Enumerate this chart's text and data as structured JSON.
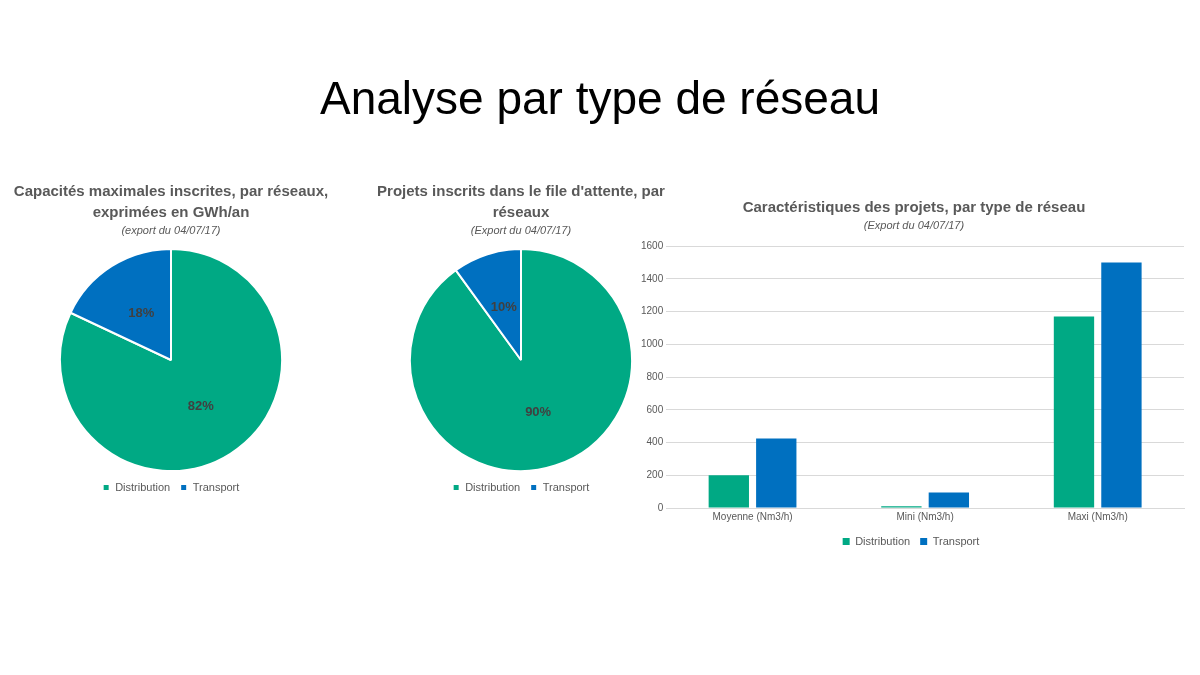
{
  "chart_data": [
    {
      "type": "pie",
      "title": "Capacités maximales inscrites, par réseaux, exprimées en GWh/an",
      "subtitle": "(export du 04/07/17)",
      "annotations": [
        "Analyse par type de réseau"
      ],
      "categories": [
        "Distribution",
        "Transport"
      ],
      "values": [
        82,
        18
      ],
      "value_labels": [
        "82%",
        "18%"
      ],
      "colors": [
        "#00a984",
        "#0070c0"
      ],
      "legend": "bottom"
    },
    {
      "type": "pie",
      "title": "Projets inscrits dans le file d'attente, par réseaux",
      "subtitle": "(Export du 04/07/17)",
      "categories": [
        "Distribution",
        "Transport"
      ],
      "values": [
        90,
        10
      ],
      "value_labels": [
        "90%",
        "10%"
      ],
      "colors": [
        "#00a984",
        "#0070c0"
      ],
      "legend": "bottom"
    },
    {
      "type": "bar",
      "title": "Caractéristiques des projets, par type de réseau",
      "subtitle": "(Export du 04/07/17)",
      "categories": [
        "Moyenne (Nm3/h)",
        "Mini (Nm3/h)",
        "Maxi (Nm3/h)"
      ],
      "series": [
        {
          "name": "Distribution",
          "color": "#00a984",
          "values": [
            200,
            10,
            1170
          ]
        },
        {
          "name": "Transport",
          "color": "#0070c0",
          "values": [
            425,
            95,
            1500
          ]
        }
      ],
      "ylim": [
        0,
        1600
      ],
      "yticks": [
        0,
        200,
        400,
        600,
        800,
        1000,
        1200,
        1400,
        1600
      ],
      "grid": "y",
      "legend": "bottom"
    }
  ]
}
